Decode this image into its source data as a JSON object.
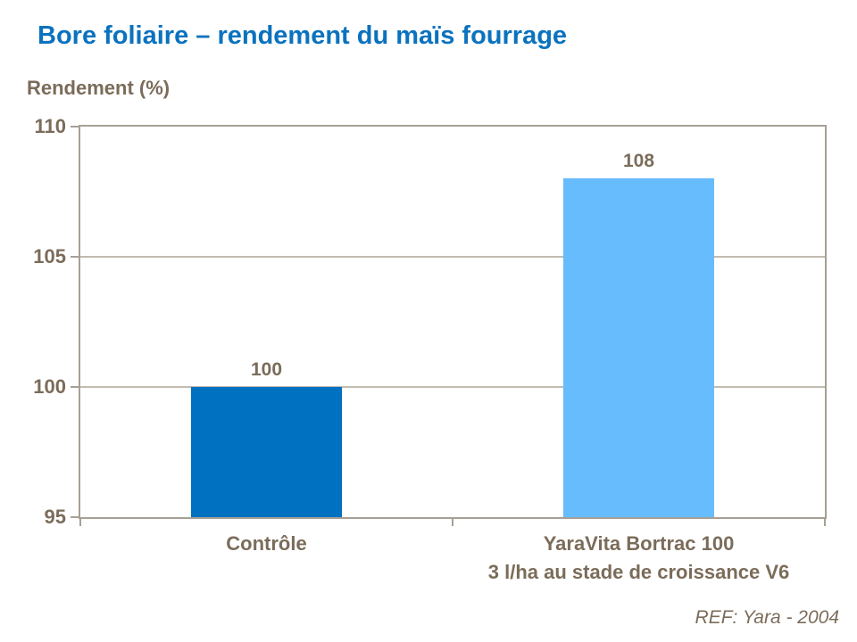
{
  "chart_data": {
    "type": "bar",
    "title": "Bore foliaire – rendement du maïs fourrage",
    "ylabel": "Rendement (%)",
    "xlabel": "",
    "ylim": [
      95,
      110
    ],
    "yticks": [
      110,
      105,
      100,
      95
    ],
    "gridlines_at": [
      105,
      100
    ],
    "grid": "horizontal",
    "legend": "none",
    "categories": [
      {
        "label": "Contrôle",
        "sublabel": ""
      },
      {
        "label": "YaraVita Bortrac 100",
        "sublabel": "3 l/ha au stade de croissance V6"
      }
    ],
    "values": [
      100,
      108
    ],
    "data_labels": [
      "100",
      "108"
    ],
    "bar_colors": [
      "#0070C0",
      "#67BCFD"
    ],
    "reference": "REF: Yara - 2004"
  },
  "colors": {
    "title_blue": "#0B72BE",
    "text_brown": "#7B6C5A",
    "axis_line": "#A8A096",
    "gridline": "#C3BBB0",
    "bar_controle": "#0070C0",
    "bar_yaravita": "#67BCFD",
    "background": "#FFFFFF"
  }
}
